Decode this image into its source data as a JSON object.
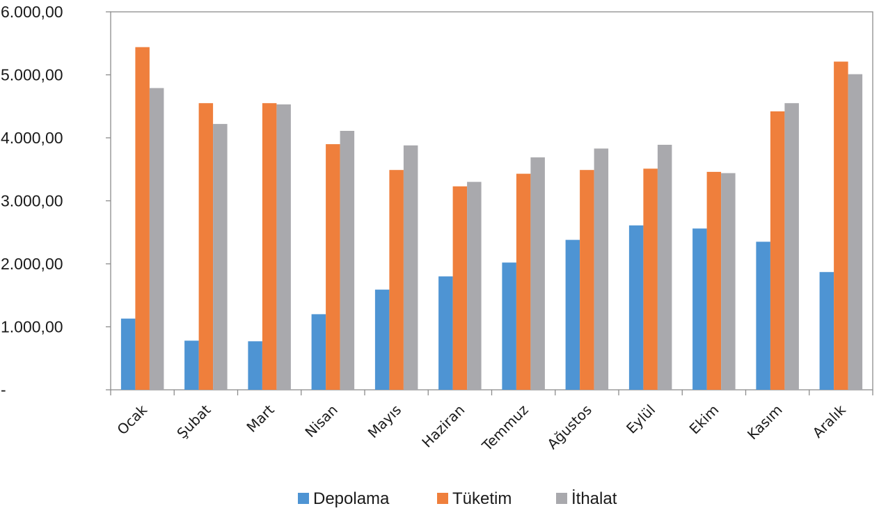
{
  "chart_data": {
    "type": "bar",
    "categories": [
      "Ocak",
      "Şubat",
      "Mart",
      "Nisan",
      "Mayıs",
      "Haziran",
      "Temmuz",
      "Ağustos",
      "Eylül",
      "Ekim",
      "Kasım",
      "Aralık"
    ],
    "series": [
      {
        "name": "Depolama",
        "color": "#4e94d3",
        "values": [
          1130,
          780,
          770,
          1200,
          1590,
          1800,
          2020,
          2380,
          2610,
          2560,
          2350,
          1870
        ]
      },
      {
        "name": "Tüketim",
        "color": "#ef7f3c",
        "values": [
          5440,
          4550,
          4550,
          3900,
          3490,
          3230,
          3430,
          3490,
          3510,
          3460,
          4420,
          5210
        ]
      },
      {
        "name": "İthalat",
        "color": "#a9a9ad",
        "values": [
          4790,
          4220,
          4530,
          4110,
          3880,
          3300,
          3690,
          3830,
          3890,
          3440,
          4550,
          5010
        ]
      }
    ],
    "ylim": [
      0,
      6000
    ],
    "yticks": [
      0,
      1000,
      2000,
      3000,
      4000,
      5000,
      6000
    ],
    "ytick_labels": [
      "-",
      "1.000,00",
      "2.000,00",
      "3.000,00",
      "4.000,00",
      "5.000,00",
      "6.000,00"
    ],
    "title": "",
    "xlabel": "",
    "ylabel": "",
    "grid": false,
    "legend_position": "bottom"
  }
}
